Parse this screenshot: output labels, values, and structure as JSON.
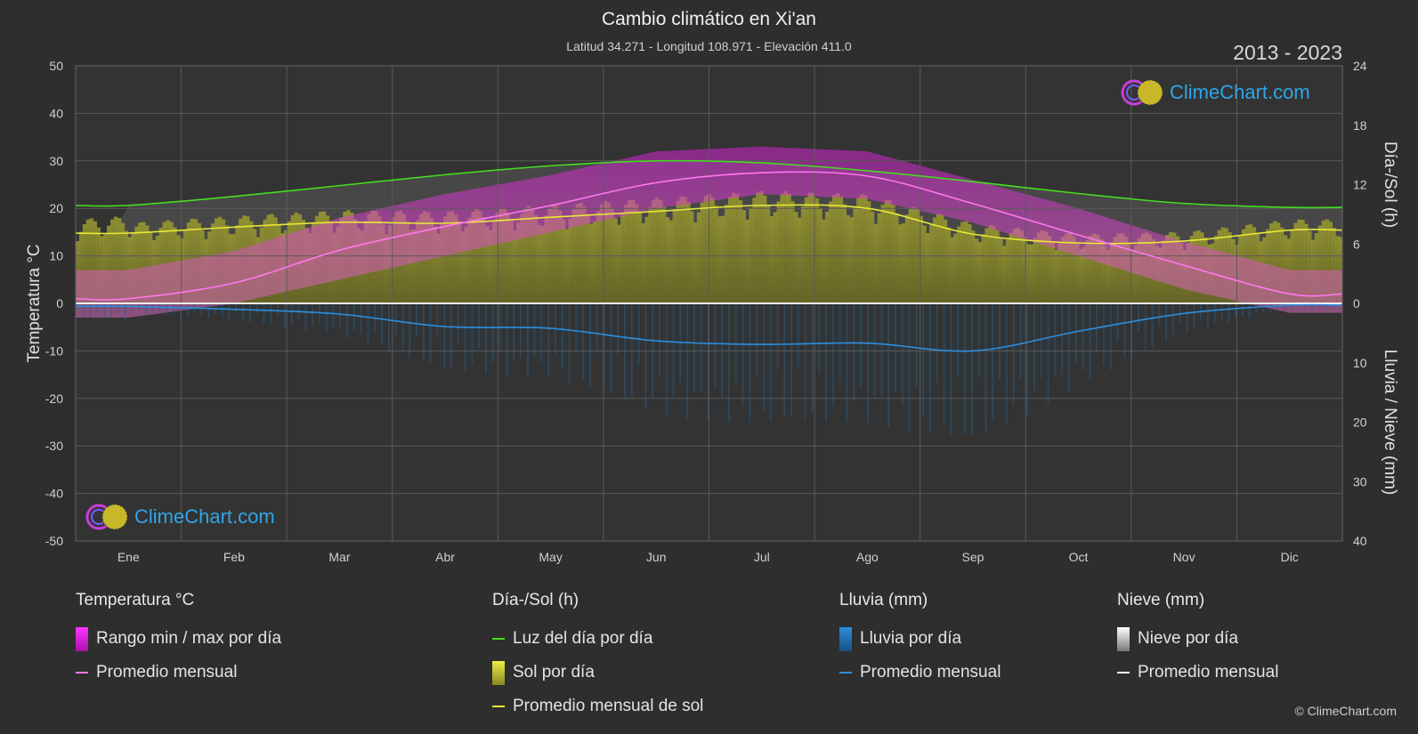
{
  "header": {
    "title": "Cambio climático en Xi'an",
    "subtitle": "Latitud 34.271 - Longitud 108.971 - Elevación 411.0",
    "years": "2013 - 2023"
  },
  "branding": {
    "logo_text": "ClimeChart.com",
    "copyright": "© ClimeChart.com"
  },
  "chart_data": {
    "type": "line",
    "categories": [
      "Ene",
      "Feb",
      "Mar",
      "Abr",
      "May",
      "Jun",
      "Jul",
      "Ago",
      "Sep",
      "Oct",
      "Nov",
      "Dic"
    ],
    "left_axis": {
      "label": "Temperatura °C",
      "ylim": [
        -50,
        50
      ],
      "ticks": [
        "50",
        "40",
        "30",
        "20",
        "10",
        "0",
        "-10",
        "-20",
        "-30",
        "-40",
        "-50"
      ]
    },
    "right_axis_top": {
      "label": "Día-/Sol (h)",
      "ylim": [
        0,
        24
      ],
      "ticks": [
        "24",
        "18",
        "12",
        "6",
        "0"
      ]
    },
    "right_axis_bottom": {
      "label": "Lluvia / Nieve (mm)",
      "ylim": [
        0,
        40
      ],
      "ticks": [
        "10",
        "20",
        "30",
        "40"
      ]
    },
    "grid": true,
    "series": [
      {
        "name": "Luz del día por día",
        "axis": "hours",
        "color": "#44dd22",
        "values": [
          9.9,
          10.8,
          11.9,
          13.0,
          13.9,
          14.4,
          14.2,
          13.4,
          12.3,
          11.1,
          10.1,
          9.7
        ]
      },
      {
        "name": "Promedio mensual de sol",
        "axis": "hours",
        "color": "#e8e838",
        "values": [
          7.1,
          7.7,
          8.2,
          8.1,
          8.7,
          9.3,
          9.9,
          9.6,
          7.0,
          6.1,
          6.3,
          7.4
        ]
      },
      {
        "name": "Promedio mensual",
        "group": "Temperatura °C",
        "axis": "temp",
        "color": "#ff77ee",
        "values": [
          1.0,
          4.3,
          11.2,
          16.2,
          20.6,
          25.4,
          27.5,
          26.8,
          21.0,
          14.4,
          8.0,
          2.0
        ]
      },
      {
        "name": "Promedio mensual",
        "group": "Lluvia (mm)",
        "axis": "rain",
        "color": "#2a8fe0",
        "values": [
          0.5,
          1.0,
          1.8,
          3.9,
          4.2,
          6.3,
          6.9,
          6.7,
          8.0,
          4.7,
          1.7,
          0.3
        ]
      },
      {
        "name": "Promedio mensual",
        "group": "Nieve (mm)",
        "axis": "snow",
        "color": "#ffffff",
        "values": [
          0,
          0,
          0,
          0,
          0,
          0,
          0,
          0,
          0,
          0,
          0,
          0
        ]
      }
    ],
    "temp_range": {
      "name": "Rango min / max por día",
      "min": [
        -3,
        0,
        5,
        10,
        15,
        20,
        23,
        22,
        17,
        10,
        3,
        -2
      ],
      "max": [
        7,
        11,
        18,
        23,
        27,
        32,
        33,
        32,
        26,
        20,
        13,
        7
      ]
    }
  },
  "legend": {
    "temperature": {
      "title": "Temperatura °C",
      "range": "Rango min / max por día",
      "avg": "Promedio mensual",
      "range_color": "#dd22dd",
      "avg_color": "#ff77ee"
    },
    "daylight": {
      "title": "Día-/Sol (h)",
      "daylight": "Luz del día por día",
      "sun": "Sol por día",
      "sun_avg": "Promedio mensual de sol",
      "daylight_color": "#44dd22",
      "sun_color": "#c8c830",
      "sun_avg_color": "#e8e838"
    },
    "rain": {
      "title": "Lluvia (mm)",
      "rain": "Lluvia por día",
      "avg": "Promedio mensual",
      "rain_color": "#2a8fe0",
      "avg_color": "#2a8fe0"
    },
    "snow": {
      "title": "Nieve (mm)",
      "snow": "Nieve por día",
      "avg": "Promedio mensual",
      "snow_color": "#dddddd",
      "avg_color": "#ffffff"
    }
  }
}
